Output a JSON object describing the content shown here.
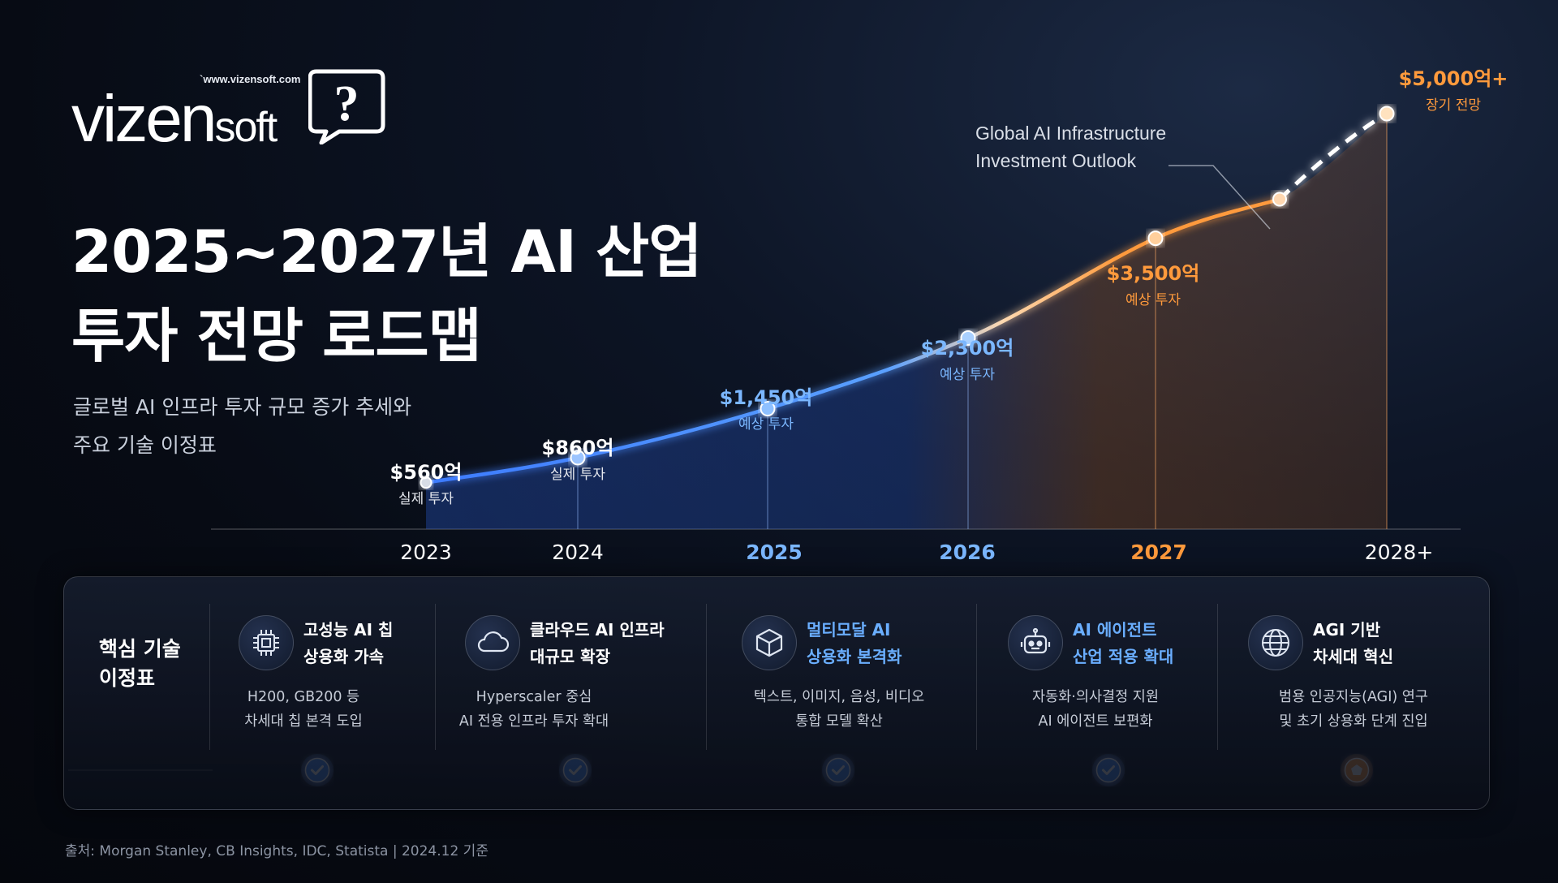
{
  "logo": {
    "url": "`www.vizensoft.com",
    "word_main": "vizen",
    "word_small": "soft",
    "bubble_symbol": "?"
  },
  "title": {
    "line1": "2025~2027년 AI 산업",
    "line2": "투자 전망 로드맵"
  },
  "subtitle": {
    "line1": "글로벌 AI 인프라 투자 규모 증가 추세와",
    "line2": "주요 기술 이정표"
  },
  "chart_data": {
    "type": "line",
    "x": [
      "2023",
      "2024",
      "2025",
      "2026",
      "2027",
      "2028+"
    ],
    "series": [
      {
        "values": [
          560,
          860,
          1450,
          2300,
          3500,
          5000
        ],
        "value_labels": [
          "$560억",
          "$860억",
          "$1,450억",
          "$2,300억",
          "$3,500억",
          "$5,000억+"
        ],
        "point_labels": [
          "실제 투자",
          "실제 투자",
          "예상 투자",
          "예상 투자",
          "예상 투자",
          "장기 전망"
        ]
      }
    ],
    "annotation": {
      "line1": "Global AI Infrastructure",
      "line2": "Investment Outlook"
    },
    "colors": {
      "actual": "#4d8dff",
      "forecast": "#ff9a3c",
      "axis_label_2025": "#7bb7ff",
      "axis_label_2027": "#ff9a3c"
    }
  },
  "milestones": {
    "label_line1": "핵심 기술",
    "label_line2": "이정표",
    "items": [
      {
        "icon": "chip-icon",
        "name1": "고성능 AI 칩",
        "name2": "상용화 가속",
        "desc1": "H200, GB200 등",
        "desc2": "차세대 칩 본격 도입",
        "status": "check",
        "color": "#4a90ff"
      },
      {
        "icon": "cloud-icon",
        "name1": "클라우드 AI 인프라",
        "name2": "대규모 확장",
        "desc1": "Hyperscaler 중심",
        "desc2": "AI 전용 인프라 투자 확대",
        "status": "check",
        "color": "#4a90ff"
      },
      {
        "icon": "cube-icon",
        "name1": "멀티모달 AI",
        "name2": "상용화 본격화",
        "desc1": "텍스트, 이미지, 음성, 비디오",
        "desc2": "통합 모델 확산",
        "status": "check",
        "color": "#4a90ff"
      },
      {
        "icon": "robot-icon",
        "name1": "AI 에이전트",
        "name2": "산업 적용 확대",
        "desc1": "자동화·의사결정 지원",
        "desc2": "AI 에이전트 보편화",
        "status": "check",
        "color": "#4a90ff"
      },
      {
        "icon": "globe-icon",
        "name1": "AGI 기반",
        "name2": "차세대 혁신",
        "desc1": "범용 인공지능(AGI) 연구",
        "desc2": "및 초기 상용화 단계 진입",
        "status": "pentagon",
        "color": "#ff9a3c"
      }
    ]
  },
  "source": "출처: Morgan Stanley, CB Insights, IDC, Statista    |    2024.12 기준"
}
